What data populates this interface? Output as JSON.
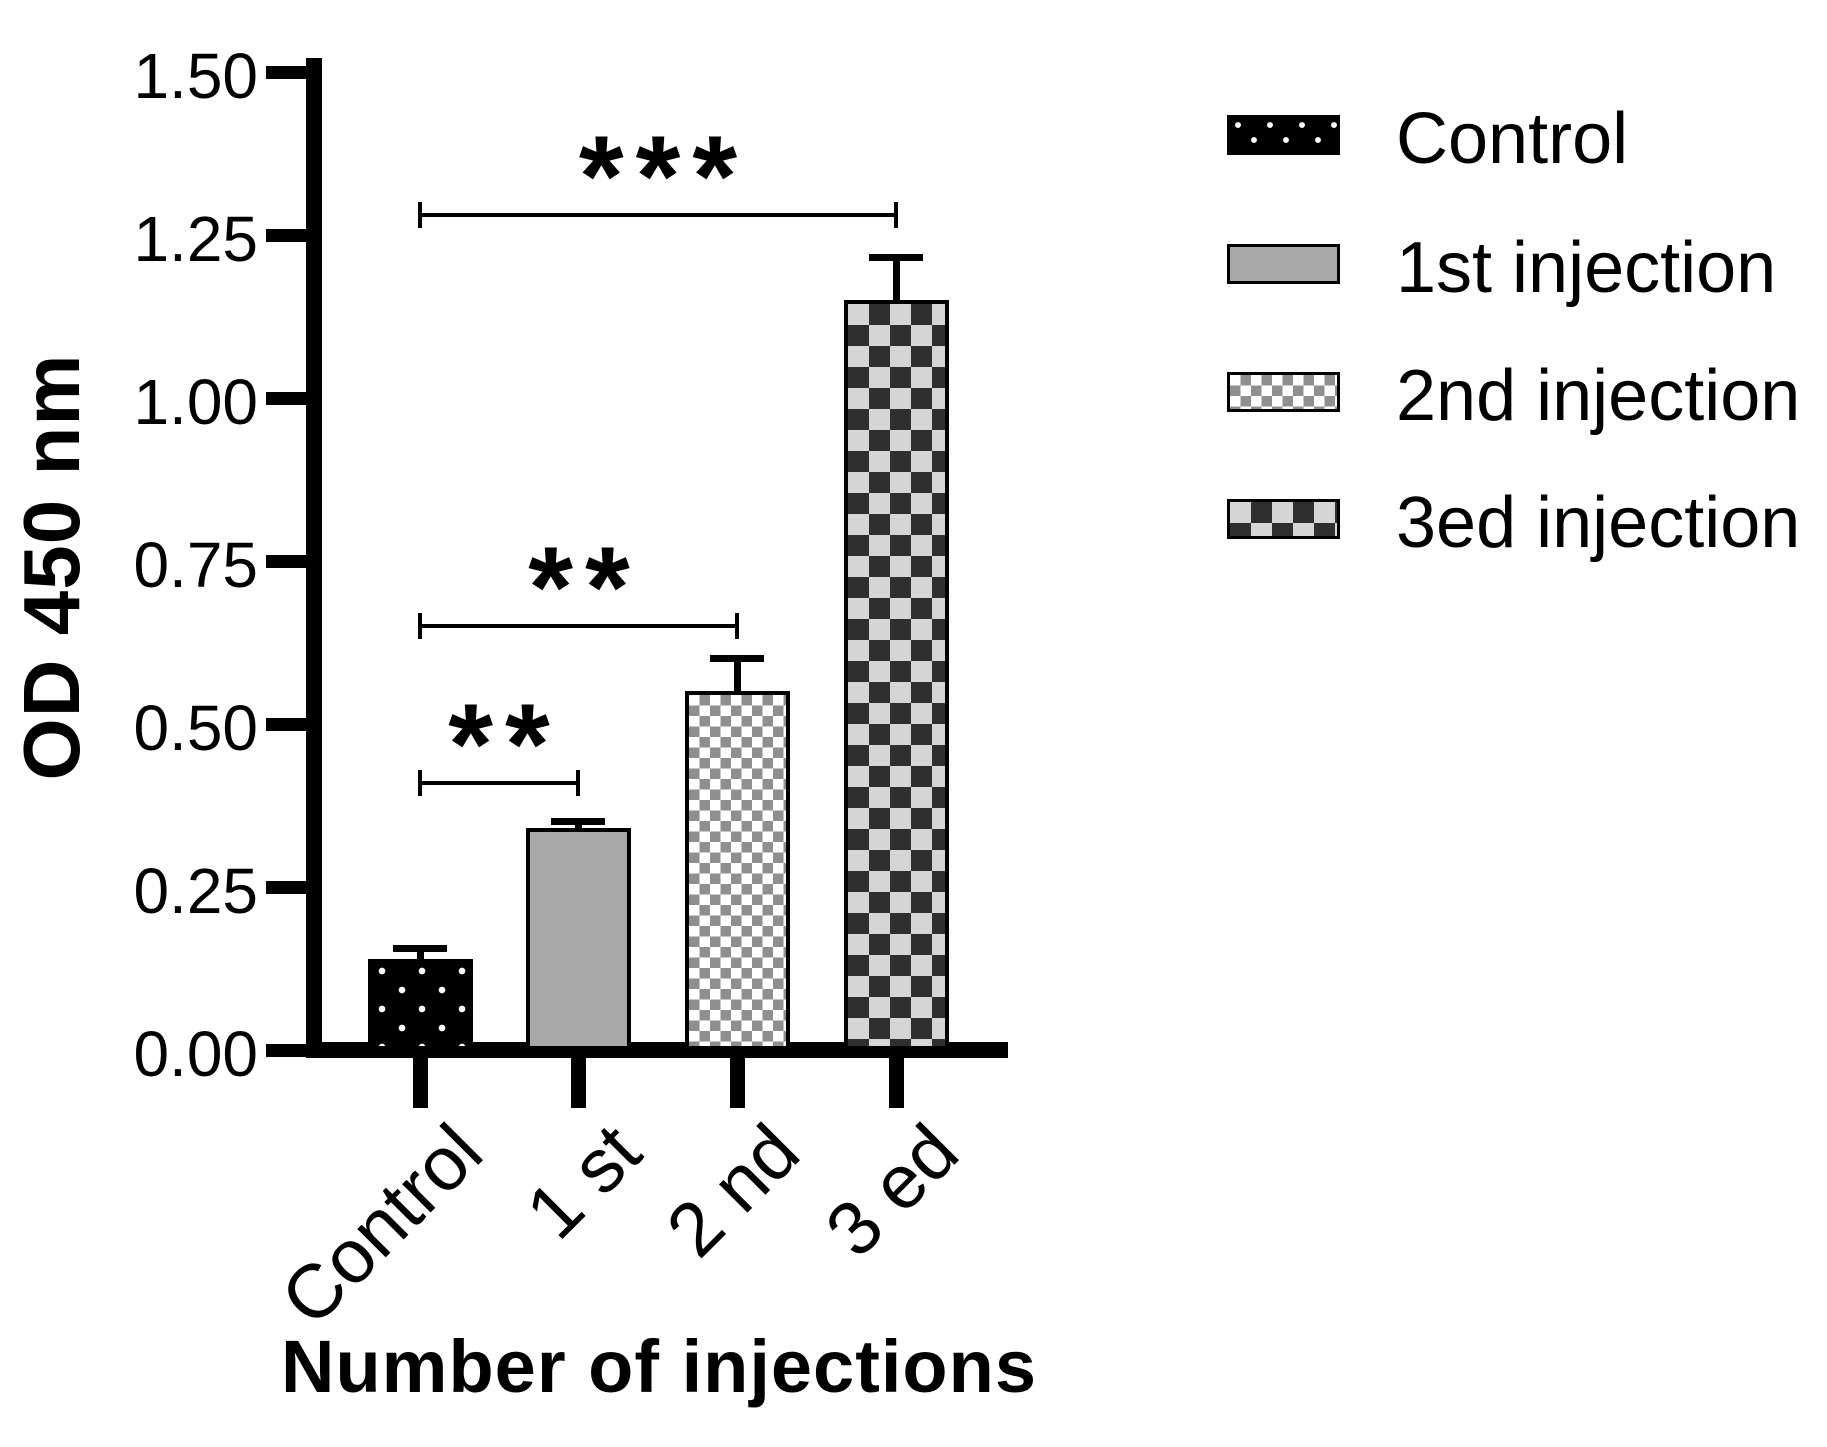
{
  "chart_data": {
    "type": "bar",
    "title": "",
    "xlabel": "Number of injections",
    "ylabel": "OD 450 nm",
    "ylim": [
      0,
      1.5
    ],
    "ytick_step": 0.25,
    "ytick_labels": [
      "0.00",
      "0.25",
      "0.50",
      "0.75",
      "1.00",
      "1.25",
      "1.50"
    ],
    "categories": [
      "Control",
      "1 st",
      "2 nd",
      "3 ed"
    ],
    "values": [
      0.14,
      0.34,
      0.55,
      1.15
    ],
    "errors": [
      0.015,
      0.01,
      0.05,
      0.065
    ],
    "bar_patterns": [
      "black-dots",
      "solid-gray",
      "small-checker",
      "large-checker"
    ],
    "significance": [
      {
        "from": 0,
        "to": 1,
        "label": "**",
        "height": 0.41
      },
      {
        "from": 0,
        "to": 2,
        "label": "**",
        "height": 0.65
      },
      {
        "from": 0,
        "to": 3,
        "label": "***",
        "height": 1.28
      }
    ],
    "legend": {
      "position": "top-right",
      "entries": [
        {
          "label": "Control",
          "pattern": "black-dots"
        },
        {
          "label": "1st injection",
          "pattern": "solid-gray"
        },
        {
          "label": "2nd injection",
          "pattern": "small-checker"
        },
        {
          "label": "3ed injection",
          "pattern": "large-checker"
        }
      ]
    },
    "colors": {
      "axis": "#000000",
      "solid_gray": "#a8a8a8",
      "checker_gray": "#8f8f8f",
      "checker_dark": "#2f2f2f",
      "checker_light": "#d5d5d5",
      "background": "#ffffff"
    },
    "grid": false,
    "error_bar_style": "cap-above-bar"
  }
}
